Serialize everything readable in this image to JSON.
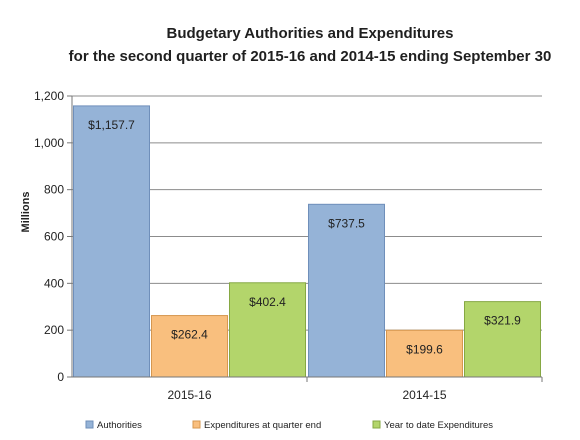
{
  "chart_data": {
    "type": "bar",
    "title": "Budgetary Authorities and Expenditures",
    "subtitle": "for the second quarter of 2015-16 and 2014-15 ending September 30",
    "xlabel": "",
    "ylabel": "Millions",
    "ylim": [
      0,
      1200
    ],
    "yticks": [
      "0",
      "200",
      "400",
      "600",
      "800",
      "1,000",
      "1,200"
    ],
    "ytick_values": [
      0,
      200,
      400,
      600,
      800,
      1000,
      1200
    ],
    "grid": true,
    "legend_position": "bottom",
    "categories": [
      "2015-16",
      "2014-15"
    ],
    "series": [
      {
        "name": "Authorities",
        "values": [
          1157.7,
          737.5
        ],
        "labels": [
          "$1,157.7",
          "$737.5"
        ],
        "color": "#95b3d7",
        "stroke": "#6f8fba"
      },
      {
        "name": "Expenditures at quarter end",
        "values": [
          262.4,
          199.6
        ],
        "labels": [
          "$262.4",
          "$199.6"
        ],
        "color": "#f9bf7e",
        "stroke": "#d6974f"
      },
      {
        "name": "Year to date Expenditures",
        "values": [
          402.4,
          321.9
        ],
        "labels": [
          "$402.4",
          "$321.9"
        ],
        "color": "#b3d56b",
        "stroke": "#86a843"
      }
    ]
  }
}
